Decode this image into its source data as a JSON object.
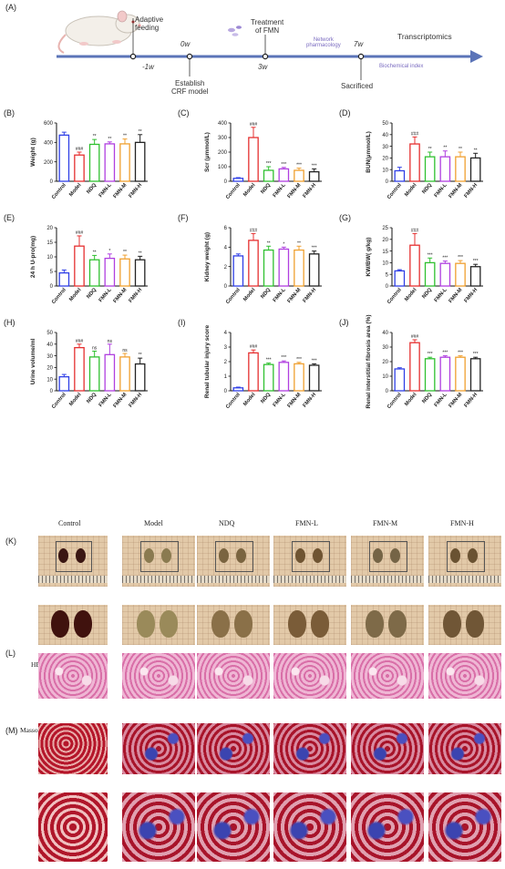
{
  "timeline": {
    "panel_label": "(A)",
    "events_above": [
      {
        "label": "Adaptive\nfeeding"
      },
      {
        "label": "Treatment\nof FMN"
      },
      {
        "label": "Transcriptomics"
      }
    ],
    "events_below": [
      {
        "label": "Establish\nCRF model"
      },
      {
        "label": "Sacrificed"
      }
    ],
    "ticks": [
      {
        "label": "-1w",
        "pos": "below"
      },
      {
        "label": "0w",
        "pos": "above"
      },
      {
        "label": "3w",
        "pos": "below"
      },
      {
        "label": "7w",
        "pos": "above"
      }
    ],
    "notes": [
      "Network\npharmacology",
      "Biochemical index"
    ],
    "accent": "#5b74b8"
  },
  "groups": [
    "Control",
    "Model",
    "NDQ",
    "FMN-L",
    "FMN-M",
    "FMN-H"
  ],
  "group_colors": [
    "#2f3fe6",
    "#e63030",
    "#2fc02f",
    "#b03fe0",
    "#f0a030",
    "#222222"
  ],
  "chart_data": [
    {
      "panel": "(B)",
      "type": "bar",
      "ylabel": "Weight (g)",
      "ylim": [
        0,
        600
      ],
      "yticks": [
        0,
        200,
        400,
        600
      ],
      "values": [
        475,
        270,
        380,
        385,
        385,
        400
      ],
      "errors": [
        30,
        30,
        50,
        20,
        50,
        80
      ],
      "sig": [
        "",
        "###",
        "**",
        "**",
        "**",
        "**"
      ]
    },
    {
      "panel": "(C)",
      "type": "bar",
      "ylabel": "Scr (μmmol/L)",
      "ylim": [
        0,
        400
      ],
      "yticks": [
        0,
        100,
        200,
        300,
        400
      ],
      "values": [
        20,
        300,
        75,
        85,
        75,
        65
      ],
      "errors": [
        5,
        70,
        25,
        10,
        15,
        20
      ],
      "sig": [
        "",
        "###",
        "***",
        "***",
        "***",
        "***"
      ]
    },
    {
      "panel": "(D)",
      "type": "bar",
      "ylabel": "BUN(μmmol/L)",
      "ylim": [
        0,
        50
      ],
      "yticks": [
        0,
        10,
        20,
        30,
        40,
        50
      ],
      "values": [
        9,
        32,
        21,
        21,
        21,
        20
      ],
      "errors": [
        3,
        6,
        4,
        5,
        4,
        4
      ],
      "sig": [
        "",
        "###",
        "**",
        "**",
        "**",
        "**"
      ]
    },
    {
      "panel": "(E)",
      "type": "bar",
      "ylabel": "24 h U-pro(mg)",
      "ylim": [
        0,
        20
      ],
      "yticks": [
        0,
        5,
        10,
        15,
        20
      ],
      "values": [
        4.5,
        13.7,
        9,
        9.5,
        9.3,
        9
      ],
      "errors": [
        1,
        3.5,
        1.5,
        1.5,
        1.3,
        1.2
      ],
      "sig": [
        "",
        "###",
        "**",
        "*",
        "**",
        "**"
      ]
    },
    {
      "panel": "(F)",
      "type": "bar",
      "ylabel": "Kidney weight (g)",
      "ylim": [
        0,
        6
      ],
      "yticks": [
        0,
        2,
        4,
        6
      ],
      "values": [
        3.1,
        4.7,
        3.7,
        3.8,
        3.7,
        3.3
      ],
      "errors": [
        0.2,
        0.7,
        0.4,
        0.2,
        0.4,
        0.3
      ],
      "sig": [
        "",
        "###",
        "**",
        "*",
        "**",
        "***"
      ]
    },
    {
      "panel": "(G)",
      "type": "bar",
      "ylabel": "KW/BW( g/kg)",
      "ylim": [
        0,
        25
      ],
      "yticks": [
        0,
        5,
        10,
        15,
        20,
        25
      ],
      "values": [
        6.5,
        17.5,
        10,
        9.7,
        9.7,
        8.3
      ],
      "errors": [
        0.5,
        5,
        2,
        1,
        1.2,
        1
      ],
      "sig": [
        "",
        "###",
        "***",
        "***",
        "***",
        "***"
      ]
    },
    {
      "panel": "(H)",
      "type": "bar",
      "ylabel": "Urine volume/ml",
      "ylim": [
        0,
        50
      ],
      "yticks": [
        0,
        10,
        20,
        30,
        40,
        50
      ],
      "values": [
        12,
        37,
        29,
        31,
        29,
        23
      ],
      "errors": [
        2,
        3,
        5,
        9,
        3,
        5
      ],
      "sig": [
        "",
        "###",
        "ns",
        "ns",
        "ns",
        "**"
      ]
    },
    {
      "panel": "(I)",
      "type": "bar",
      "ylabel": "Renal tubular injury score",
      "ylim": [
        0,
        4
      ],
      "yticks": [
        0,
        1,
        2,
        3,
        4
      ],
      "values": [
        0.2,
        2.6,
        1.8,
        1.95,
        1.85,
        1.75
      ],
      "errors": [
        0.05,
        0.2,
        0.1,
        0.1,
        0.1,
        0.1
      ],
      "sig": [
        "",
        "###",
        "***",
        "***",
        "***",
        "***"
      ]
    },
    {
      "panel": "(J)",
      "type": "bar",
      "ylabel": "Renal interstitial fibrosis area (%)",
      "ylim": [
        0,
        40
      ],
      "yticks": [
        0,
        10,
        20,
        30,
        40
      ],
      "values": [
        15,
        33,
        22,
        23,
        23,
        22
      ],
      "errors": [
        0.8,
        2,
        1,
        1,
        1,
        1
      ],
      "sig": [
        "",
        "###",
        "***",
        "***",
        "***",
        "***"
      ]
    }
  ],
  "photo_panel": {
    "k_label": "(K)",
    "l_label": "(L)",
    "l_tag": "HE",
    "m_label": "(M)",
    "m_tag": "Masson",
    "columns": [
      "Control",
      "Model",
      "NDQ",
      "FMN-L",
      "FMN-M",
      "FMN-H"
    ],
    "kidney_colors": [
      "#3a1612",
      "#8a7a50",
      "#7a6440",
      "#6f5432",
      "#756446",
      "#6a5232"
    ],
    "kidney_colors_zoom": [
      "#40120e",
      "#9a8a5a",
      "#8a7048",
      "#7a5c38",
      "#7e6a48",
      "#705636"
    ]
  }
}
